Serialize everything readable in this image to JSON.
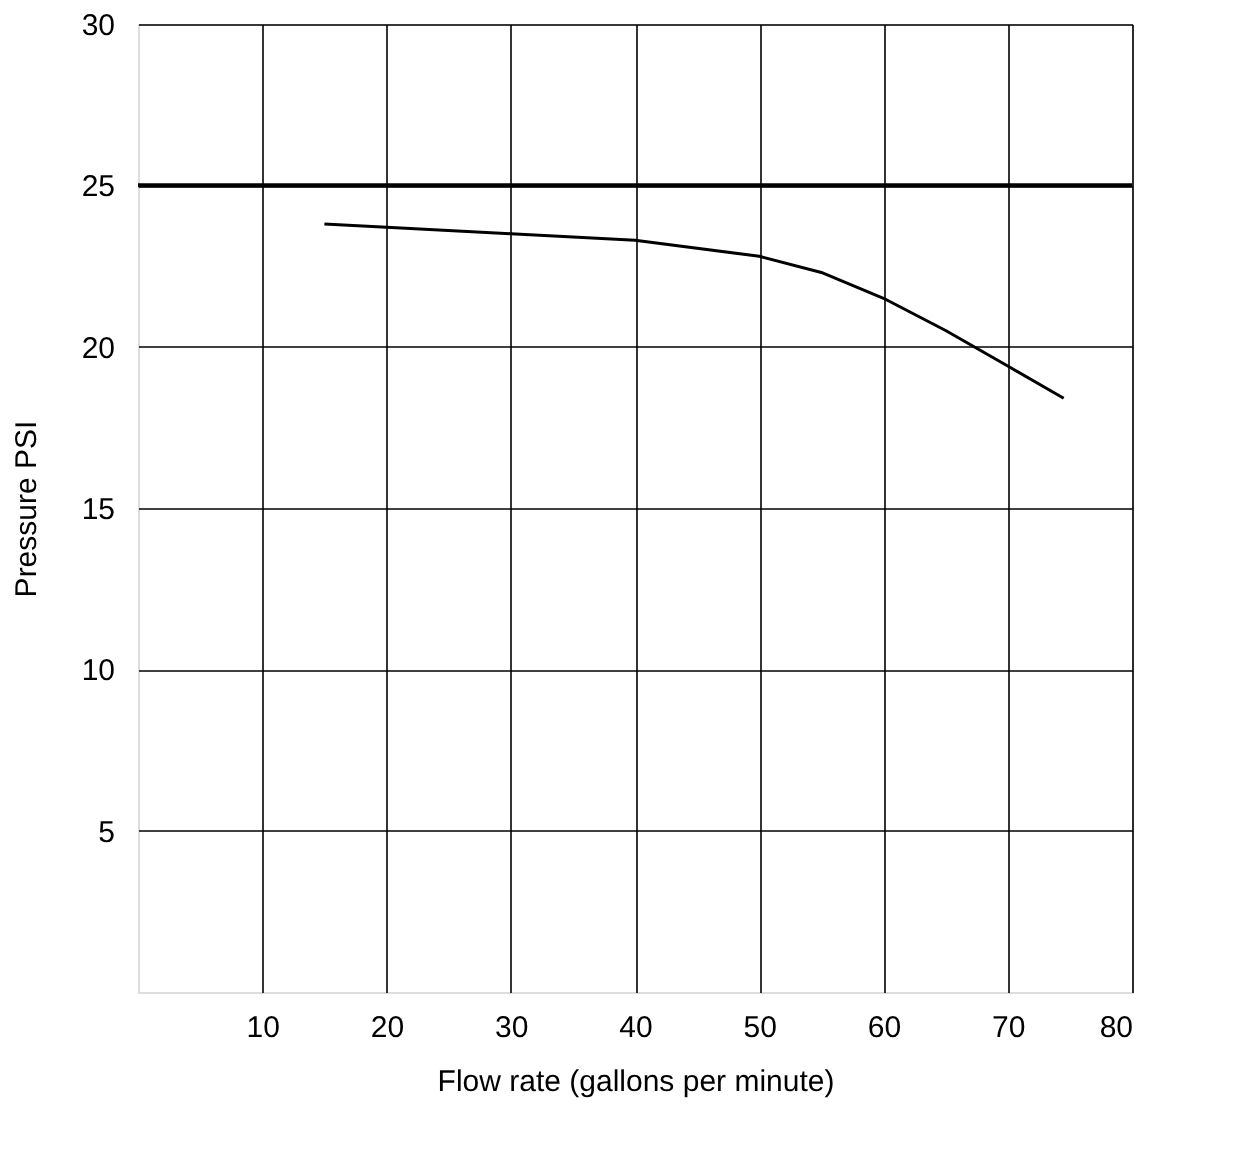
{
  "chart_data": {
    "type": "line",
    "xlabel": "Flow rate (gallons per minute)",
    "ylabel": "Pressure PSI",
    "x": [
      15,
      20,
      30,
      40,
      50,
      55,
      60,
      65,
      70,
      74.5
    ],
    "series": [
      {
        "color": "#000000",
        "values": [
          23.8,
          23.7,
          23.5,
          23.3,
          22.8,
          22.3,
          21.5,
          20.5,
          19.4,
          18.4
        ]
      }
    ],
    "xlim": [
      0,
      80
    ],
    "xticks": [
      10,
      20,
      30,
      40,
      50,
      60,
      70,
      80
    ],
    "ylim": [
      0,
      30
    ],
    "yticks": [
      5,
      10,
      15,
      20,
      25,
      30
    ],
    "grid": true,
    "marker": "none",
    "line_style": "solid",
    "ref_lines": [
      {
        "axis": "y",
        "value": 25,
        "color": "#000000"
      }
    ]
  }
}
